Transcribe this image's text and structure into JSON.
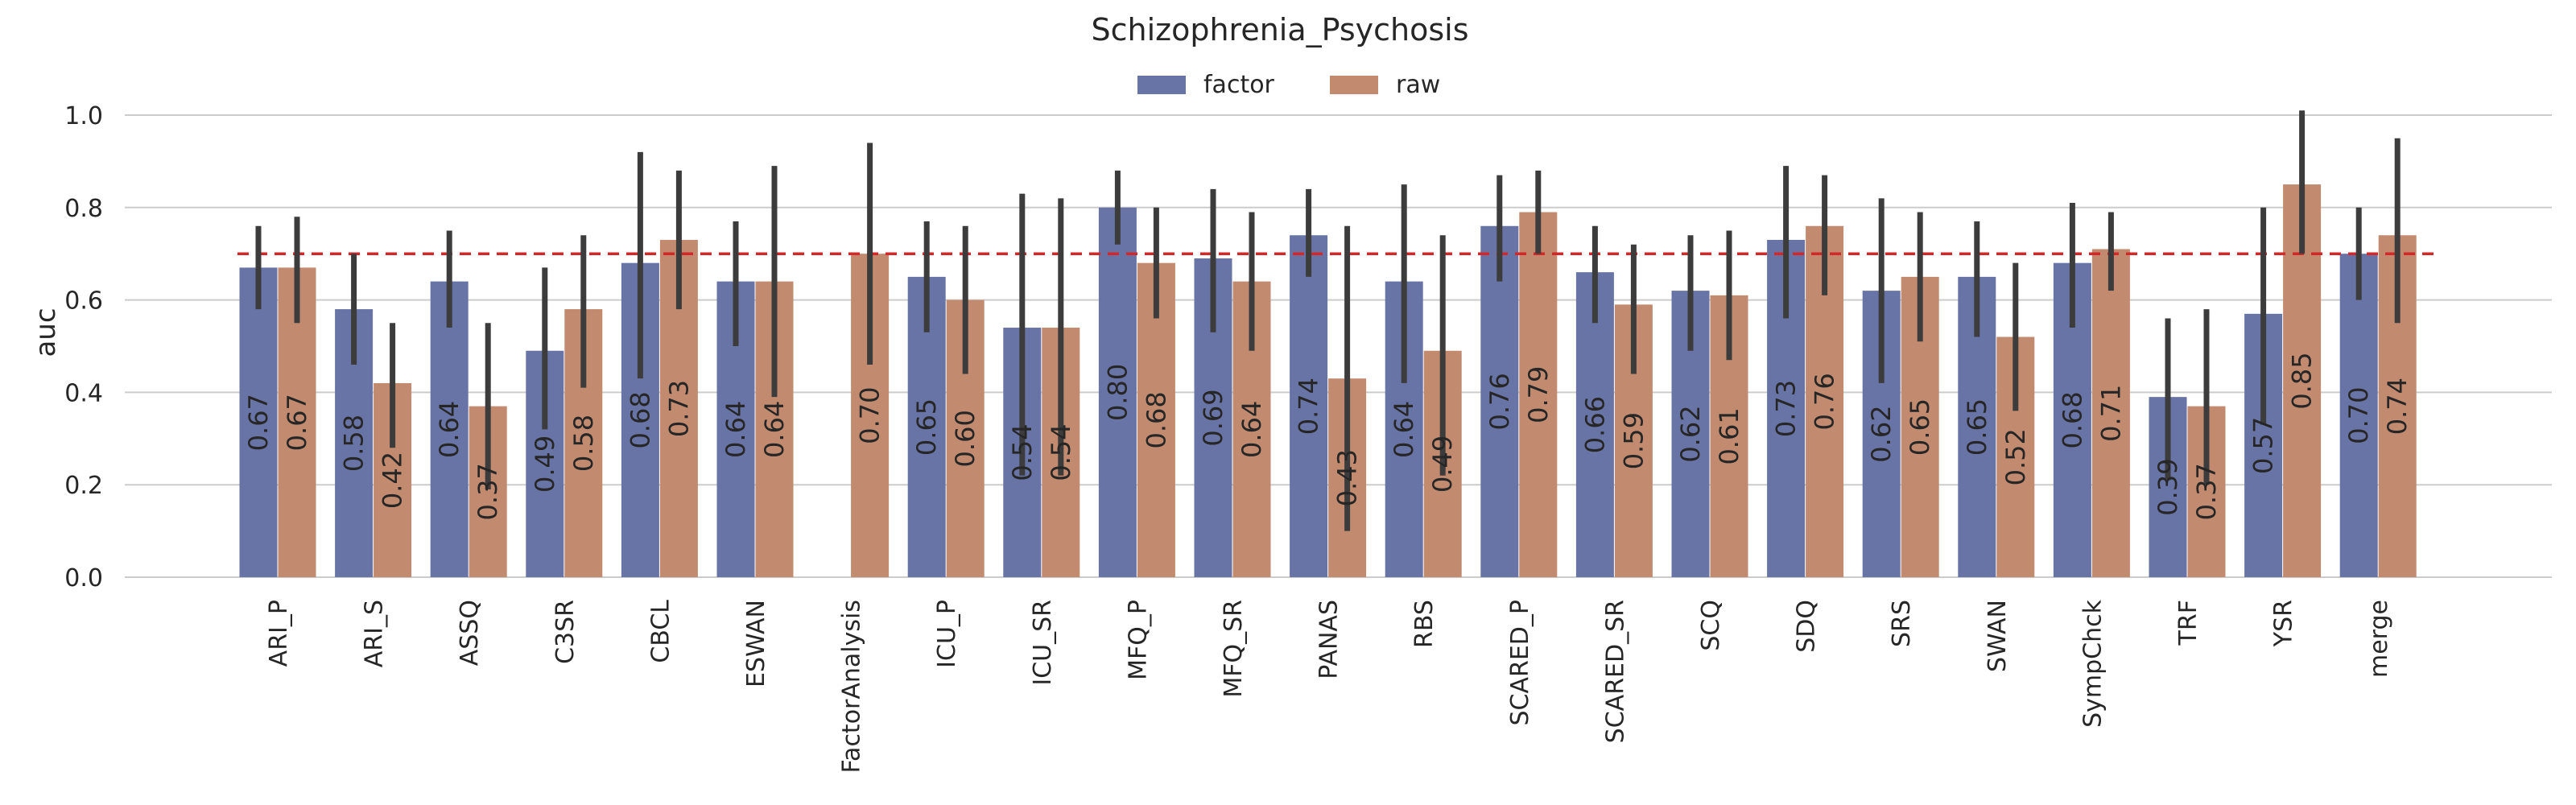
{
  "chart_data": {
    "type": "bar",
    "title": "Schizophrenia_Psychosis",
    "ylabel": "auc",
    "xlabel": "",
    "ylim": [
      0,
      1.0
    ],
    "yticks": [
      0.0,
      0.2,
      0.4,
      0.6,
      0.8,
      1.0
    ],
    "ytick_labels": [
      "0.0",
      "0.2",
      "0.4",
      "0.6",
      "0.8",
      "1.0"
    ],
    "grid": true,
    "legend_position": "top-center",
    "reference_line": {
      "y": 0.7,
      "style": "dashed",
      "color": "#d62728"
    },
    "categories": [
      "ARI_P",
      "ARI_S",
      "ASSQ",
      "C3SR",
      "CBCL",
      "ESWAN",
      "FactorAnalysis",
      "ICU_P",
      "ICU_SR",
      "MFQ_P",
      "MFQ_SR",
      "PANAS",
      "RBS",
      "SCARED_P",
      "SCARED_SR",
      "SCQ",
      "SDQ",
      "SRS",
      "SWAN",
      "SympChck",
      "TRF",
      "YSR",
      "merge"
    ],
    "series": [
      {
        "name": "factor",
        "color": "#6874a6",
        "values": [
          0.67,
          0.58,
          0.64,
          0.49,
          0.68,
          0.64,
          null,
          0.65,
          0.54,
          0.8,
          0.69,
          0.74,
          0.64,
          0.76,
          0.66,
          0.62,
          0.73,
          0.62,
          0.65,
          0.68,
          0.39,
          0.57,
          0.7
        ],
        "labels": [
          "0.67",
          "0.58",
          "0.64",
          "0.49",
          "0.68",
          "0.64",
          null,
          "0.65",
          "0.54",
          "0.80",
          "0.69",
          "0.74",
          "0.64",
          "0.76",
          "0.66",
          "0.62",
          "0.73",
          "0.62",
          "0.65",
          "0.68",
          "0.39",
          "0.57",
          "0.70"
        ],
        "ci": [
          [
            0.58,
            0.76
          ],
          [
            0.46,
            0.7
          ],
          [
            0.54,
            0.75
          ],
          [
            0.32,
            0.67
          ],
          [
            0.43,
            0.92
          ],
          [
            0.5,
            0.77
          ],
          null,
          [
            0.53,
            0.77
          ],
          [
            0.22,
            0.83
          ],
          [
            0.72,
            0.88
          ],
          [
            0.53,
            0.84
          ],
          [
            0.65,
            0.84
          ],
          [
            0.42,
            0.85
          ],
          [
            0.64,
            0.87
          ],
          [
            0.55,
            0.76
          ],
          [
            0.49,
            0.74
          ],
          [
            0.56,
            0.89
          ],
          [
            0.42,
            0.82
          ],
          [
            0.52,
            0.77
          ],
          [
            0.54,
            0.81
          ],
          [
            0.21,
            0.56
          ],
          [
            0.33,
            0.8
          ],
          [
            0.6,
            0.8
          ]
        ]
      },
      {
        "name": "raw",
        "color": "#c28a6e",
        "values": [
          0.67,
          0.42,
          0.37,
          0.58,
          0.73,
          0.64,
          0.7,
          0.6,
          0.54,
          0.68,
          0.64,
          0.43,
          0.49,
          0.79,
          0.59,
          0.61,
          0.76,
          0.65,
          0.52,
          0.71,
          0.37,
          0.85,
          0.74
        ],
        "labels": [
          "0.67",
          "0.42",
          "0.37",
          "0.58",
          "0.73",
          "0.64",
          "0.70",
          "0.60",
          "0.54",
          "0.68",
          "0.64",
          "0.43",
          "0.49",
          "0.79",
          "0.59",
          "0.61",
          "0.76",
          "0.65",
          "0.52",
          "0.71",
          "0.37",
          "0.85",
          "0.74"
        ],
        "ci": [
          [
            0.55,
            0.78
          ],
          [
            0.28,
            0.55
          ],
          [
            0.19,
            0.55
          ],
          [
            0.41,
            0.74
          ],
          [
            0.58,
            0.88
          ],
          [
            0.39,
            0.89
          ],
          [
            0.46,
            0.94
          ],
          [
            0.44,
            0.76
          ],
          [
            0.22,
            0.82
          ],
          [
            0.56,
            0.8
          ],
          [
            0.49,
            0.79
          ],
          [
            0.1,
            0.76
          ],
          [
            0.22,
            0.74
          ],
          [
            0.7,
            0.88
          ],
          [
            0.44,
            0.72
          ],
          [
            0.47,
            0.75
          ],
          [
            0.61,
            0.87
          ],
          [
            0.51,
            0.79
          ],
          [
            0.36,
            0.68
          ],
          [
            0.62,
            0.79
          ],
          [
            0.2,
            0.58
          ],
          [
            0.7,
            1.01
          ],
          [
            0.55,
            0.95
          ]
        ]
      }
    ]
  }
}
